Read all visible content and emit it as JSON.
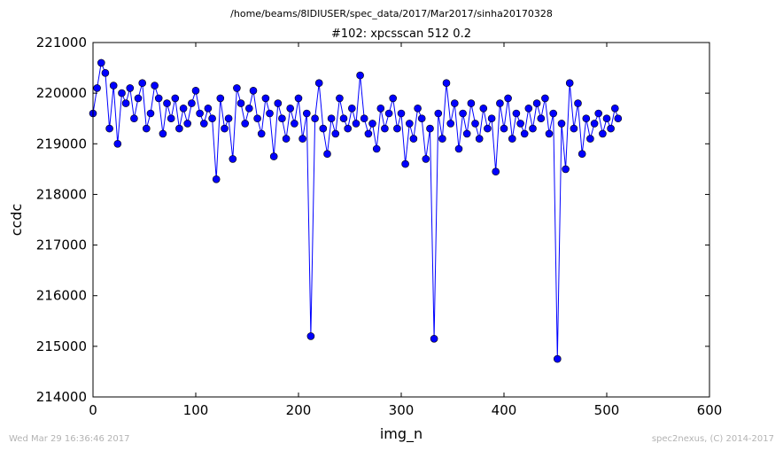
{
  "figure": {
    "suptitle": "/home/beams/8IDIUSER/spec_data/2017/Mar2017/sinha20170328",
    "footer_left": "Wed Mar 29 16:36:46 2017",
    "footer_right": "spec2nexus, (C) 2014-2017"
  },
  "chart_data": {
    "type": "line",
    "title": "#102: xpcsscan 512 0.2",
    "xlabel": "img_n",
    "ylabel": "ccdc",
    "xlim": [
      0,
      600
    ],
    "ylim": [
      214000,
      221000
    ],
    "xticks": [
      0,
      100,
      200,
      300,
      400,
      500,
      600
    ],
    "yticks": [
      214000,
      215000,
      216000,
      217000,
      218000,
      219000,
      220000,
      221000
    ],
    "grid": false,
    "marker": "circle",
    "color": "#0000ff",
    "series": [
      {
        "name": "",
        "x": [
          0,
          4,
          8,
          12,
          16,
          20,
          24,
          28,
          32,
          36,
          40,
          44,
          48,
          52,
          56,
          60,
          64,
          68,
          72,
          76,
          80,
          84,
          88,
          92,
          96,
          100,
          104,
          108,
          112,
          116,
          120,
          124,
          128,
          132,
          136,
          140,
          144,
          148,
          152,
          156,
          160,
          164,
          168,
          172,
          176,
          180,
          184,
          188,
          192,
          196,
          200,
          204,
          208,
          212,
          216,
          220,
          224,
          228,
          232,
          236,
          240,
          244,
          248,
          252,
          256,
          260,
          264,
          268,
          272,
          276,
          280,
          284,
          288,
          292,
          296,
          300,
          304,
          308,
          312,
          316,
          320,
          324,
          328,
          332,
          336,
          340,
          344,
          348,
          352,
          356,
          360,
          364,
          368,
          372,
          376,
          380,
          384,
          388,
          392,
          396,
          400,
          404,
          408,
          412,
          416,
          420,
          424,
          428,
          432,
          436,
          440,
          444,
          448,
          452,
          456,
          460,
          464,
          468,
          472,
          476,
          480,
          484,
          488,
          492,
          496,
          500,
          504,
          508,
          511
        ],
        "values": [
          219600,
          220100,
          220600,
          220400,
          219300,
          220150,
          219000,
          220000,
          219800,
          220100,
          219500,
          219900,
          220200,
          219300,
          219600,
          220150,
          219900,
          219200,
          219800,
          219500,
          219900,
          219300,
          219700,
          219400,
          219800,
          220050,
          219600,
          219400,
          219700,
          219500,
          218300,
          219900,
          219300,
          219500,
          218700,
          220100,
          219800,
          219400,
          219700,
          220050,
          219500,
          219200,
          219900,
          219600,
          218750,
          219800,
          219500,
          219100,
          219700,
          219400,
          219900,
          219100,
          219600,
          215200,
          219500,
          220200,
          219300,
          218800,
          219500,
          219200,
          219900,
          219500,
          219300,
          219700,
          219400,
          220350,
          219500,
          219200,
          219400,
          218900,
          219700,
          219300,
          219600,
          219900,
          219300,
          219600,
          218600,
          219400,
          219100,
          219700,
          219500,
          218700,
          219300,
          215150,
          219600,
          219100,
          220200,
          219400,
          219800,
          218900,
          219600,
          219200,
          219800,
          219400,
          219100,
          219700,
          219300,
          219500,
          218450,
          219800,
          219300,
          219900,
          219100,
          219600,
          219400,
          219200,
          219700,
          219300,
          219800,
          219500,
          219900,
          219200,
          219600,
          214750,
          219400,
          218500,
          220200,
          219300,
          219800,
          218800,
          219500,
          219100,
          219400,
          219600,
          219200,
          219500,
          219300,
          219700,
          219500
        ]
      }
    ]
  }
}
